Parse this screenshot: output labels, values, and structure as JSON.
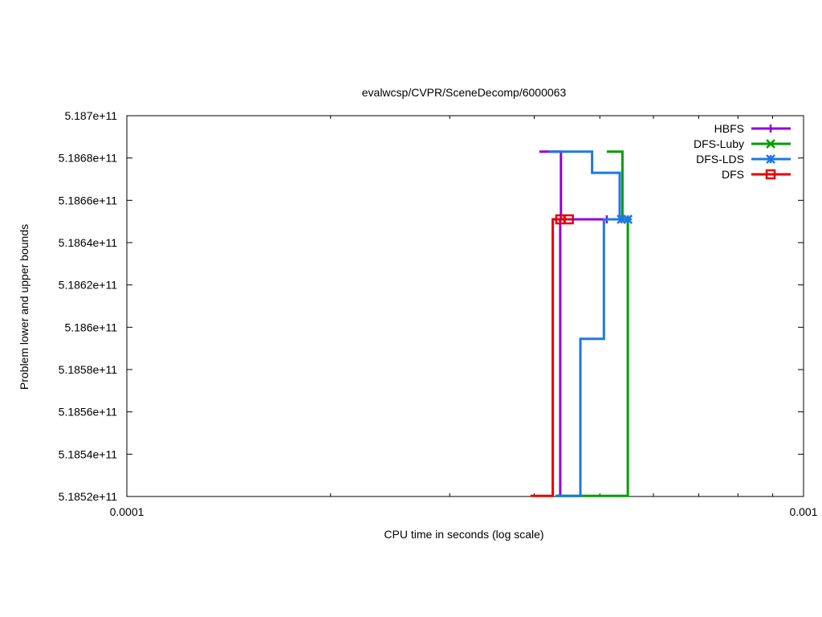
{
  "chart_data": {
    "type": "line",
    "title": "evalwcsp/CVPR/SceneDecomp/6000063",
    "xlabel": "CPU time in seconds (log scale)",
    "ylabel": "Problem lower and upper bounds",
    "x_scale": "log",
    "xlim": [
      0.0001,
      0.001
    ],
    "ylim": [
      518520000000,
      518700000000
    ],
    "x_ticks": [
      {
        "value": 0.0001,
        "label": "0.0001"
      },
      {
        "value": 0.001,
        "label": "0.001"
      }
    ],
    "y_ticks": [
      {
        "value": 518520000000,
        "label": "5.1852e+11"
      },
      {
        "value": 518540000000,
        "label": "5.1854e+11"
      },
      {
        "value": 518560000000,
        "label": "5.1856e+11"
      },
      {
        "value": 518580000000,
        "label": "5.1858e+11"
      },
      {
        "value": 518600000000,
        "label": "5.186e+11"
      },
      {
        "value": 518620000000,
        "label": "5.1862e+11"
      },
      {
        "value": 518640000000,
        "label": "5.1864e+11"
      },
      {
        "value": 518660000000,
        "label": "5.1866e+11"
      },
      {
        "value": 518680000000,
        "label": "5.1868e+11"
      },
      {
        "value": 518700000000,
        "label": "5.187e+11"
      }
    ],
    "grid": false,
    "legend_position": "top-right",
    "series": [
      {
        "name": "HBFS",
        "color": "#9400d3",
        "marker": "plus",
        "upper": [
          [
            0.000407,
            518683000000
          ],
          [
            0.000438,
            518683000000
          ],
          [
            0.000438,
            518651000000
          ],
          [
            0.000512,
            518651000000
          ]
        ],
        "lower": [
          [
            0.000437,
            518520300000
          ],
          [
            0.000437,
            518651000000
          ],
          [
            0.000512,
            518651000000
          ]
        ],
        "markers": [
          [
            0.000512,
            518651000000
          ]
        ]
      },
      {
        "name": "DFS-Luby",
        "color": "#009e00",
        "marker": "x",
        "upper": [
          [
            0.000512,
            518683000000
          ],
          [
            0.00054,
            518683000000
          ],
          [
            0.00054,
            518651000000
          ],
          [
            0.00055,
            518651000000
          ]
        ],
        "lower": [
          [
            0.00043,
            518520300000
          ],
          [
            0.00055,
            518520300000
          ],
          [
            0.00055,
            518651000000
          ]
        ],
        "markers": [
          [
            0.00055,
            518651000000
          ]
        ]
      },
      {
        "name": "DFS-LDS",
        "color": "#1e78e6",
        "marker": "star",
        "upper": [
          [
            0.00042,
            518683000000
          ],
          [
            0.000487,
            518683000000
          ],
          [
            0.000487,
            518673000000
          ],
          [
            0.000535,
            518673000000
          ],
          [
            0.000535,
            518651000000
          ],
          [
            0.00055,
            518651000000
          ]
        ],
        "lower": [
          [
            0.00043,
            518520300000
          ],
          [
            0.000468,
            518520300000
          ],
          [
            0.000468,
            518594500000
          ],
          [
            0.000507,
            518594500000
          ],
          [
            0.000507,
            518651000000
          ],
          [
            0.00055,
            518651000000
          ]
        ],
        "markers": [
          [
            0.000538,
            518651000000
          ],
          [
            0.00055,
            518651000000
          ]
        ]
      },
      {
        "name": "DFS",
        "color": "#e60000",
        "marker": "square",
        "upper": [
          [
            0.00043,
            518651000000
          ],
          [
            0.00045,
            518651000000
          ]
        ],
        "lower": [
          [
            0.000395,
            518520300000
          ],
          [
            0.000426,
            518520300000
          ],
          [
            0.000426,
            518651000000
          ],
          [
            0.00045,
            518651000000
          ]
        ],
        "markers": [
          [
            0.000437,
            518651000000
          ],
          [
            0.00045,
            518651000000
          ]
        ]
      }
    ]
  }
}
